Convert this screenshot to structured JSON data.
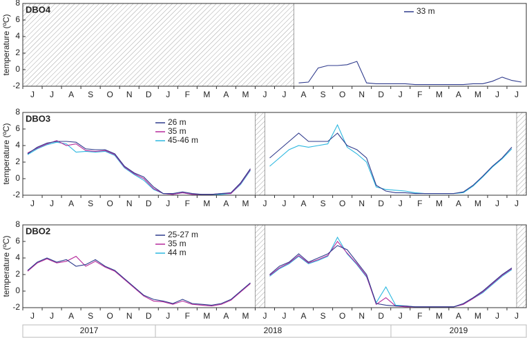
{
  "chart_data": [
    {
      "type": "line",
      "title": "DBO4",
      "y_label": "temperature (ºC)",
      "categories": [
        "J",
        null,
        "J",
        null,
        "A",
        null,
        "S",
        null,
        "O",
        null,
        "N",
        null,
        "D",
        null,
        "J",
        null,
        "F",
        null,
        "M",
        null,
        "A",
        null,
        "M",
        null,
        "J",
        null,
        "J",
        null,
        "A",
        null,
        "S",
        null,
        "O",
        null,
        "N",
        null,
        "D",
        null,
        "J",
        null,
        "F",
        null,
        "M",
        null,
        "A",
        null,
        "M",
        null,
        "J",
        null,
        "J",
        null
      ],
      "ylim": [
        -2,
        8
      ],
      "yticks": [
        -2,
        0,
        2,
        4,
        6,
        8
      ],
      "series": [
        {
          "name": "33 m",
          "color": "#2e3a8c",
          "values": [
            null,
            null,
            null,
            null,
            null,
            null,
            null,
            null,
            null,
            null,
            null,
            null,
            null,
            null,
            null,
            null,
            null,
            null,
            null,
            null,
            null,
            null,
            null,
            null,
            null,
            null,
            null,
            null,
            -1.6,
            -1.5,
            0.2,
            0.5,
            0.5,
            0.6,
            1.0,
            -1.6,
            -1.7,
            -1.7,
            -1.7,
            -1.7,
            -1.8,
            -1.8,
            -1.8,
            -1.8,
            -1.8,
            -1.8,
            -1.7,
            -1.7,
            -1.4,
            -0.9,
            -1.3,
            -1.5
          ]
        }
      ]
    },
    {
      "type": "line",
      "title": "DBO3",
      "y_label": "temperature (ºC)",
      "categories": [
        "J",
        null,
        "J",
        null,
        "A",
        null,
        "S",
        null,
        "O",
        null,
        "N",
        null,
        "D",
        null,
        "J",
        null,
        "F",
        null,
        "M",
        null,
        "A",
        null,
        "M",
        null,
        "J",
        null,
        "J",
        null,
        "A",
        null,
        "S",
        null,
        "O",
        null,
        "N",
        null,
        "D",
        null,
        "J",
        null,
        "F",
        null,
        "M",
        null,
        "A",
        null,
        "M",
        null,
        "J",
        null,
        "J",
        null
      ],
      "ylim": [
        -2,
        8
      ],
      "yticks": [
        -2,
        0,
        2,
        4,
        6,
        8
      ],
      "series": [
        {
          "name": "26 m",
          "color": "#2e3a8c",
          "values": [
            3.0,
            3.8,
            4.3,
            4.5,
            4.5,
            4.4,
            3.6,
            3.5,
            3.5,
            3.0,
            1.5,
            0.7,
            0.2,
            -1.0,
            -1.8,
            -1.8,
            -1.6,
            -1.8,
            -1.9,
            -1.9,
            -1.8,
            -1.7,
            -0.5,
            1.2,
            null,
            2.5,
            3.5,
            4.5,
            5.5,
            4.5,
            4.5,
            4.5,
            5.5,
            4.0,
            3.5,
            2.5,
            -0.8,
            -1.5,
            -1.7,
            -1.7,
            -1.8,
            -1.8,
            -1.8,
            -1.8,
            -1.8,
            -1.6,
            -0.8,
            0.3,
            1.5,
            2.5,
            3.8,
            null
          ]
        },
        {
          "name": "35 m",
          "color": "#b5299b",
          "values": [
            3.1,
            3.7,
            4.2,
            4.6,
            4.0,
            4.2,
            3.4,
            3.3,
            3.4,
            2.9,
            1.4,
            0.6,
            0.0,
            -1.2,
            -1.8,
            -1.9,
            -1.7,
            -1.9,
            -1.9,
            -1.9,
            -1.8,
            -1.8,
            -0.6,
            1.1,
            null,
            null,
            null,
            null,
            null,
            null,
            null,
            null,
            null,
            null,
            null,
            null,
            null,
            null,
            null,
            null,
            null,
            null,
            null,
            null,
            null,
            null,
            null,
            null,
            null,
            null,
            null,
            null
          ]
        },
        {
          "name": "45-46 m",
          "color": "#2ab7e0",
          "values": [
            2.9,
            3.6,
            4.1,
            4.4,
            4.2,
            3.2,
            3.3,
            3.2,
            3.3,
            2.8,
            1.3,
            0.5,
            -0.2,
            -1.3,
            -1.8,
            -1.9,
            -1.7,
            -1.9,
            -1.9,
            -1.9,
            -1.9,
            -1.8,
            -0.7,
            1.0,
            null,
            1.5,
            2.5,
            3.5,
            4.0,
            3.8,
            4.0,
            4.2,
            6.5,
            3.8,
            3.0,
            2.0,
            -1.0,
            -1.3,
            -1.4,
            -1.5,
            -1.7,
            -1.8,
            -1.8,
            -1.8,
            -1.8,
            -1.7,
            -0.9,
            0.2,
            1.4,
            2.4,
            3.6,
            null
          ]
        }
      ]
    },
    {
      "type": "line",
      "title": "DBO2",
      "y_label": "temperature (ºC)",
      "categories": [
        "J",
        null,
        "J",
        null,
        "A",
        null,
        "S",
        null,
        "O",
        null,
        "N",
        null,
        "D",
        null,
        "J",
        null,
        "F",
        null,
        "M",
        null,
        "A",
        null,
        "M",
        null,
        "J",
        null,
        "J",
        null,
        "A",
        null,
        "S",
        null,
        "O",
        null,
        "N",
        null,
        "D",
        null,
        "J",
        null,
        "F",
        null,
        "M",
        null,
        "A",
        null,
        "M",
        null,
        "J",
        null,
        "J",
        null
      ],
      "ylim": [
        -2,
        8
      ],
      "yticks": [
        -2,
        0,
        2,
        4,
        6,
        8
      ],
      "series": [
        {
          "name": "25-27 m",
          "color": "#2e3a8c",
          "values": [
            2.5,
            3.5,
            4.0,
            3.5,
            3.8,
            3.0,
            3.2,
            3.8,
            3.0,
            2.5,
            1.5,
            0.5,
            -0.5,
            -1.0,
            -1.2,
            -1.5,
            -1.0,
            -1.5,
            -1.6,
            -1.7,
            -1.5,
            -1.0,
            0.0,
            1.0,
            null,
            2.0,
            3.0,
            3.5,
            4.5,
            3.5,
            4.0,
            4.5,
            5.5,
            5.0,
            3.5,
            2.0,
            -1.5,
            -1.7,
            -1.8,
            -1.8,
            -1.9,
            -1.9,
            -1.9,
            -1.9,
            -1.9,
            -1.5,
            -0.8,
            0.0,
            1.0,
            2.0,
            2.8,
            null
          ]
        },
        {
          "name": "35 m",
          "color": "#b5299b",
          "values": [
            2.4,
            3.4,
            3.9,
            3.4,
            3.6,
            4.2,
            3.0,
            3.6,
            2.9,
            2.4,
            1.4,
            0.4,
            -0.6,
            -1.2,
            -1.3,
            -1.6,
            -1.2,
            -1.6,
            -1.7,
            -1.8,
            -1.6,
            -1.1,
            -0.1,
            0.9,
            null,
            1.9,
            2.8,
            3.4,
            4.3,
            3.4,
            3.8,
            4.3,
            6.0,
            4.6,
            3.3,
            1.8,
            -1.6,
            -0.8,
            -1.8,
            -1.9,
            -1.9,
            -1.9,
            -1.9,
            -1.9,
            -1.9,
            -1.6,
            -0.9,
            -0.1,
            0.9,
            1.9,
            2.7,
            null
          ]
        },
        {
          "name": "44 m",
          "color": "#2ab7e0",
          "values": [
            null,
            null,
            null,
            null,
            null,
            null,
            null,
            null,
            null,
            null,
            null,
            null,
            null,
            null,
            null,
            null,
            null,
            null,
            null,
            null,
            null,
            null,
            null,
            null,
            null,
            1.8,
            2.7,
            3.3,
            4.2,
            3.3,
            3.7,
            4.2,
            6.5,
            4.5,
            3.2,
            1.7,
            -1.4,
            0.5,
            -1.7,
            -1.8,
            -1.9,
            -1.9,
            -1.9,
            -1.9,
            -1.9,
            -1.6,
            -0.9,
            -0.2,
            0.8,
            1.8,
            2.6,
            null
          ]
        }
      ]
    }
  ],
  "year_labels": [
    "2017",
    "2018",
    "2019"
  ]
}
